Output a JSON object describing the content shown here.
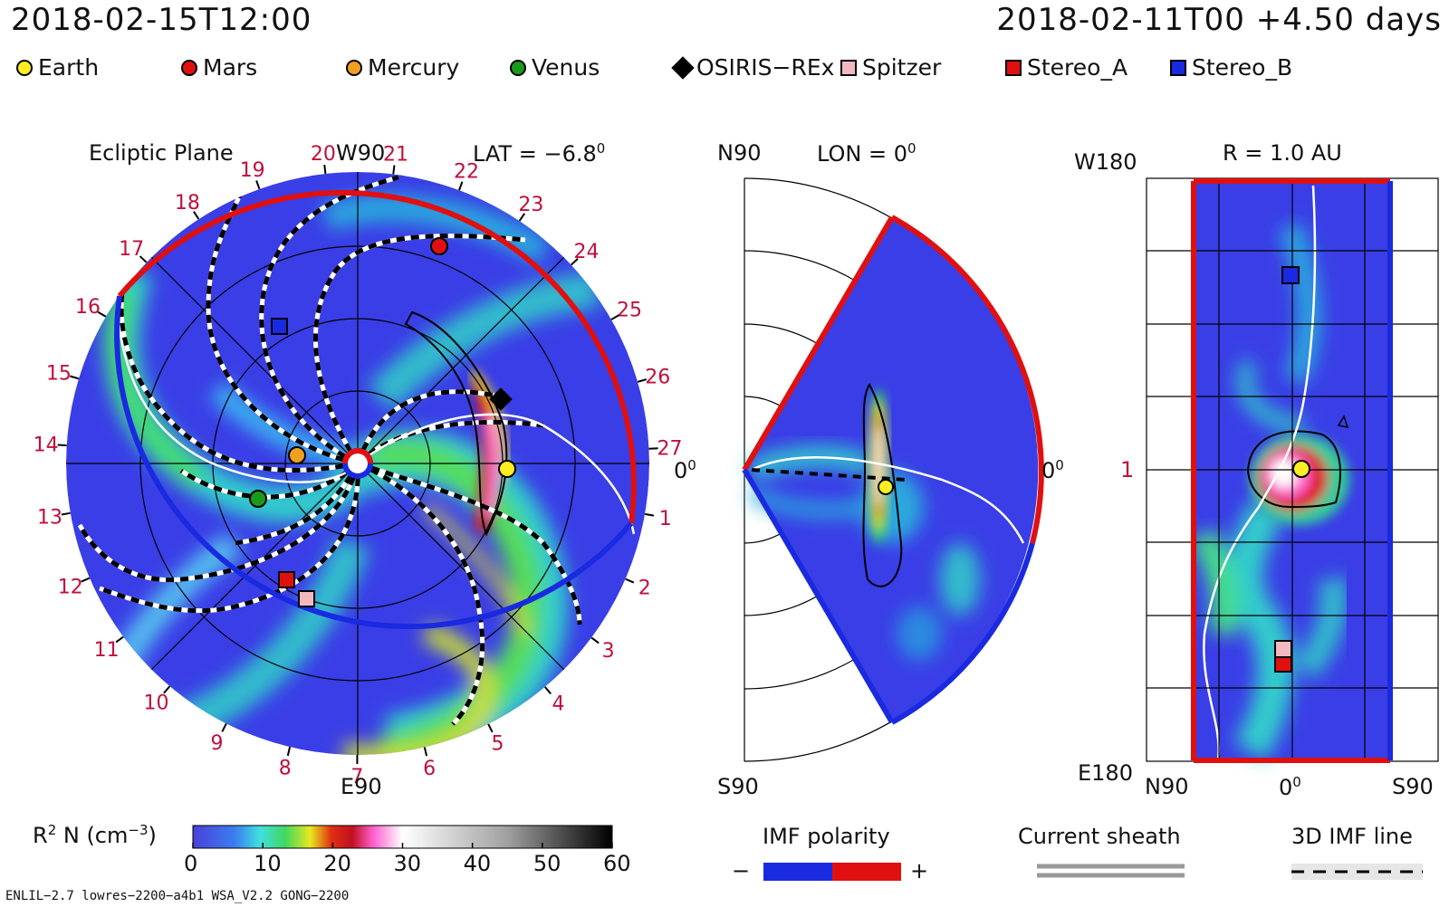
{
  "header": {
    "left_time": "2018-02-15T12:00",
    "right_time": "2018-02-11T00 +4.50 days"
  },
  "legend": [
    {
      "label": "Earth",
      "shape": "circle",
      "color": "#ffee22"
    },
    {
      "label": "Mars",
      "shape": "circle",
      "color": "#e01010"
    },
    {
      "label": "Mercury",
      "shape": "circle",
      "color": "#f0a020"
    },
    {
      "label": "Venus",
      "shape": "circle",
      "color": "#1a9a1a"
    },
    {
      "label": "OSIRIS−REx",
      "shape": "diamond",
      "color": "#000000"
    },
    {
      "label": "Spitzer",
      "shape": "square",
      "color": "#f2b8c0"
    },
    {
      "label": "Stereo_A",
      "shape": "square",
      "color": "#e01010"
    },
    {
      "label": "Stereo_B",
      "shape": "square",
      "color": "#1a2ae0"
    }
  ],
  "panels": {
    "ecliptic": {
      "title": "Ecliptic Plane",
      "lat": "LAT = −6.8",
      "lat_deg": "0",
      "top": "W90",
      "bottom": "E90",
      "right": "0",
      "right_deg": "0",
      "ring_labels": [
        "1",
        "2",
        "3",
        "4",
        "5",
        "6",
        "7",
        "8",
        "9",
        "10",
        "11",
        "12",
        "13",
        "14",
        "15",
        "16",
        "17",
        "18",
        "19",
        "20",
        "21",
        "22",
        "23",
        "24",
        "25",
        "26",
        "27"
      ]
    },
    "meridional": {
      "lon": "LON = 0",
      "lon_deg": "0",
      "top": "N90",
      "bottom": "S90",
      "right": "0",
      "right_deg": "0"
    },
    "radial": {
      "title": "R = 1.0 AU",
      "top_left": "W180",
      "bottom_left": "E180",
      "mid_left": "1",
      "x_left": "N90",
      "x_mid": "0",
      "x_mid_deg": "0",
      "x_right": "S90"
    }
  },
  "colorbar": {
    "label": "R",
    "label_sup": "2",
    "label_rest": " N (cm",
    "label_exp": "−3",
    "label_end": ")",
    "ticks": [
      "0",
      "10",
      "20",
      "30",
      "40",
      "50",
      "60"
    ]
  },
  "imf": {
    "title": "IMF polarity",
    "minus": "−",
    "plus": "+",
    "neg_color": "#1a2ae0",
    "pos_color": "#e01010"
  },
  "sheath": {
    "title": "Current sheath"
  },
  "imf_line": {
    "title": "3D IMF line"
  },
  "footer": {
    "model": "ENLIL−2.7 lowres−2200−a4b1 WSA_V2.2 GONG−2200"
  }
}
